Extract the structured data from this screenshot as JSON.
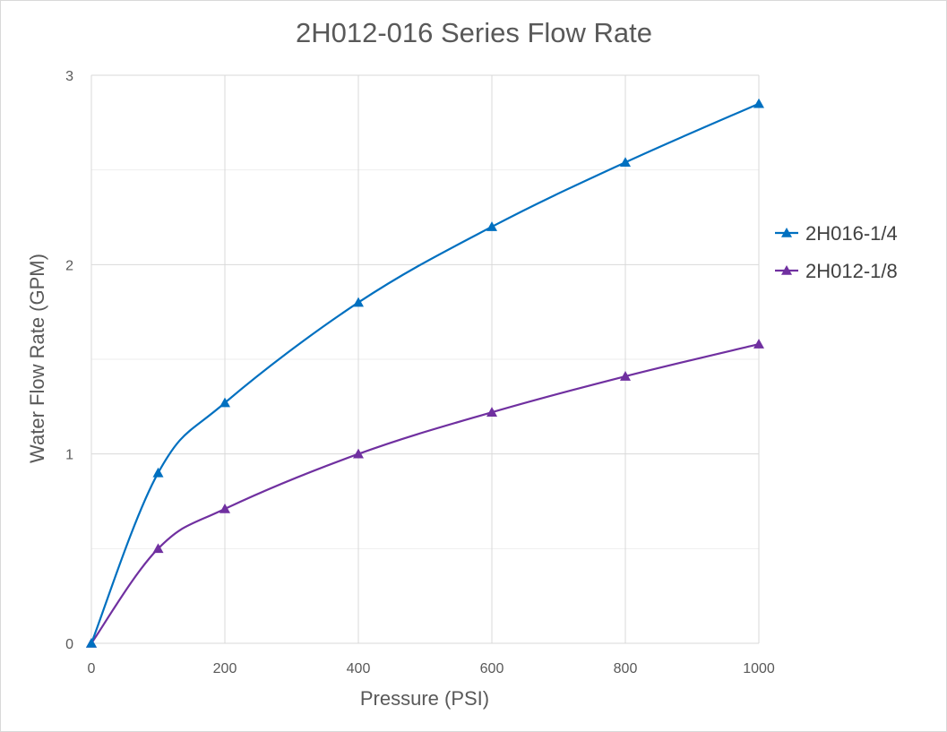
{
  "chart_data": {
    "type": "line",
    "title": "2H012-016 Series Flow Rate",
    "xlabel": "Pressure (PSI)",
    "ylabel": "Water Flow Rate (GPM)",
    "xlim": [
      0,
      1000
    ],
    "ylim": [
      0,
      3
    ],
    "x_ticks": [
      0,
      200,
      400,
      600,
      800,
      1000
    ],
    "y_ticks": [
      0,
      1,
      2,
      3
    ],
    "grid": true,
    "legend_position": "right",
    "series": [
      {
        "name": "2H016-1/4",
        "color": "#0070c0",
        "marker": "triangle",
        "x": [
          0,
          100,
          200,
          400,
          600,
          800,
          1000
        ],
        "y": [
          0,
          0.9,
          1.27,
          1.8,
          2.2,
          2.54,
          2.85
        ]
      },
      {
        "name": "2H012-1/8",
        "color": "#7030a0",
        "marker": "triangle",
        "x": [
          0,
          100,
          200,
          400,
          600,
          800,
          1000
        ],
        "y": [
          0,
          0.5,
          0.71,
          1.0,
          1.22,
          1.41,
          1.58
        ]
      }
    ]
  }
}
